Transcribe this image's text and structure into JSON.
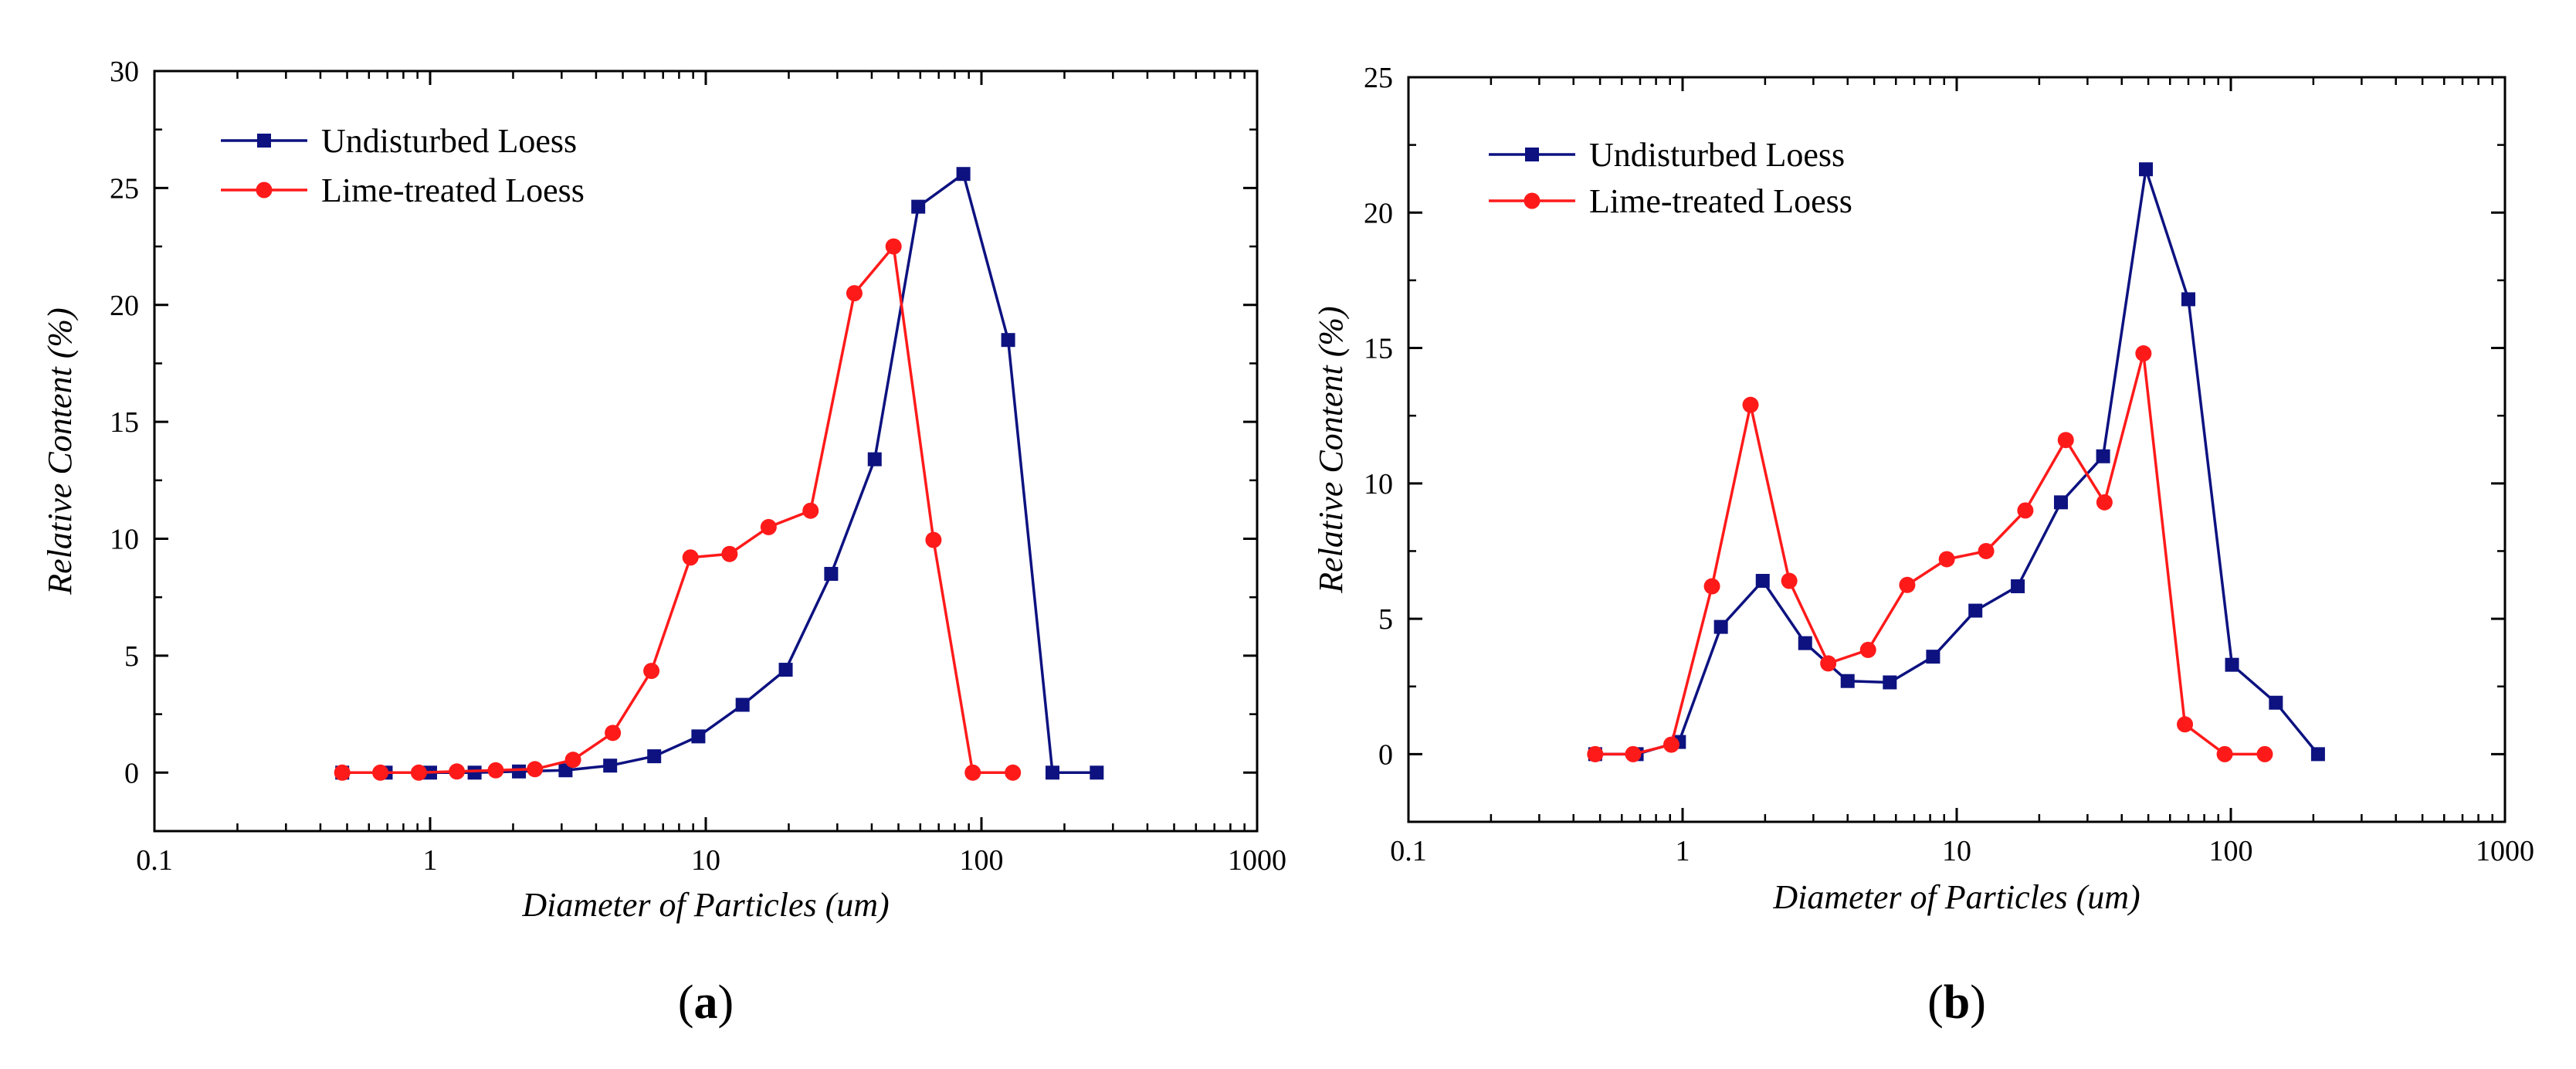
{
  "colors": {
    "undisturbed": "#0d1280",
    "lime": "#ff1a1a",
    "axis": "#000000"
  },
  "chart_data": [
    {
      "type": "line",
      "panel": "a",
      "panel_label": {
        "open": "(",
        "letter": "a",
        "close": ")"
      },
      "xlabel": "Diameter of Particles (um)",
      "ylabel": "Relative Content (%)",
      "xscale": "log",
      "xlim": [
        0.1,
        1000
      ],
      "ylim": [
        -2.5,
        30
      ],
      "xticks": [
        0.1,
        1,
        10,
        100,
        1000
      ],
      "xtick_labels": [
        "0.1",
        "1",
        "10",
        "100",
        "1000"
      ],
      "yticks": [
        0,
        5,
        10,
        15,
        20,
        25,
        30
      ],
      "ytick_labels": [
        "0",
        "5",
        "10",
        "15",
        "20",
        "25",
        "30"
      ],
      "legend_position": "top-left",
      "series": [
        {
          "name": "Undisturbed Loess",
          "marker": "square",
          "color": "#0d1280",
          "x": [
            0.48,
            0.69,
            1.0,
            1.45,
            2.1,
            3.1,
            4.5,
            6.5,
            9.4,
            13.6,
            19.5,
            28.5,
            41,
            59,
            86,
            125,
            181,
            262
          ],
          "y": [
            0,
            0,
            0,
            0,
            0.05,
            0.1,
            0.3,
            0.7,
            1.55,
            2.9,
            4.4,
            8.5,
            13.4,
            24.2,
            25.6,
            18.5,
            0,
            0
          ]
        },
        {
          "name": "Lime-treated Loess",
          "marker": "circle",
          "color": "#ff1a1a",
          "x": [
            0.48,
            0.66,
            0.91,
            1.25,
            1.73,
            2.4,
            3.3,
            4.6,
            6.35,
            8.8,
            12.2,
            16.9,
            24,
            34.6,
            48,
            67,
            93,
            130
          ],
          "y": [
            0,
            0,
            0,
            0.05,
            0.1,
            0.15,
            0.55,
            1.7,
            4.35,
            9.2,
            9.35,
            10.5,
            11.2,
            20.5,
            22.5,
            9.95,
            0,
            0
          ]
        }
      ]
    },
    {
      "type": "line",
      "panel": "b",
      "panel_label": {
        "open": "(",
        "letter": "b",
        "close": ")"
      },
      "xlabel": "Diameter of Particles (um)",
      "ylabel": "Relative Content (%)",
      "xscale": "log",
      "xlim": [
        0.1,
        1000
      ],
      "ylim": [
        -2.5,
        25
      ],
      "xticks": [
        0.1,
        1,
        10,
        100,
        1000
      ],
      "xtick_labels": [
        "0.1",
        "1",
        "10",
        "100",
        "1000"
      ],
      "yticks": [
        0,
        5,
        10,
        15,
        20,
        25
      ],
      "ytick_labels": [
        "0",
        "5",
        "10",
        "15",
        "20",
        "25"
      ],
      "legend_position": "top-left",
      "series": [
        {
          "name": "Undisturbed Loess",
          "marker": "square",
          "color": "#0d1280",
          "x": [
            0.48,
            0.68,
            0.97,
            1.38,
            1.96,
            2.8,
            4.0,
            5.7,
            8.2,
            11.7,
            16.7,
            24,
            34.2,
            49,
            70,
            101,
            146,
            208
          ],
          "y": [
            0,
            0,
            0.45,
            4.7,
            6.4,
            4.1,
            2.7,
            2.65,
            3.6,
            5.3,
            6.2,
            9.3,
            11.0,
            21.6,
            16.8,
            3.3,
            1.9,
            0
          ]
        },
        {
          "name": "Lime-treated Loess",
          "marker": "circle",
          "color": "#ff1a1a",
          "x": [
            0.48,
            0.66,
            0.91,
            1.28,
            1.77,
            2.45,
            3.4,
            4.75,
            6.6,
            9.2,
            12.8,
            17.8,
            25,
            34.6,
            48,
            68,
            95,
            133
          ],
          "y": [
            0,
            0,
            0.35,
            6.2,
            12.9,
            6.4,
            3.35,
            3.85,
            6.25,
            7.2,
            7.5,
            9.0,
            11.6,
            9.3,
            14.8,
            1.1,
            0,
            0
          ]
        }
      ]
    }
  ]
}
